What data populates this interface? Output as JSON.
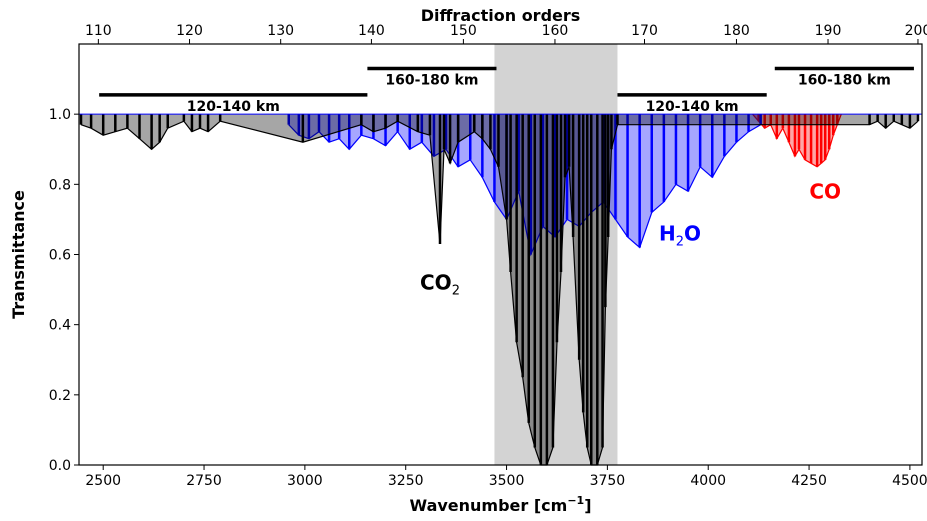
{
  "chart_data": {
    "type": "line",
    "xlabel": "Wavenumber [cm",
    "xlabel_sup": "−1",
    "xlabel_end": "]",
    "ylabel": "Transmittance",
    "top_axis_label": "Diffraction orders",
    "xlim": [
      2440,
      4530
    ],
    "ylim": [
      0.0,
      1.2
    ],
    "x_ticks": [
      2500,
      2750,
      3000,
      3250,
      3500,
      3750,
      4000,
      4250,
      4500
    ],
    "y_ticks": [
      0.0,
      0.2,
      0.4,
      0.6,
      0.8,
      1.0
    ],
    "top_ticks": [
      110,
      120,
      130,
      140,
      150,
      160,
      170,
      180,
      190,
      200
    ],
    "top_tick_positions_wavenumber": [
      2488,
      2714,
      2940,
      3165,
      3393,
      3620,
      3842,
      4070,
      4297,
      4520
    ],
    "shaded_region": [
      3470,
      3775
    ],
    "altitude_bars": [
      {
        "label": "120-140 km",
        "x_range": [
          2490,
          3155
        ],
        "y": 1.055
      },
      {
        "label": "160-180 km",
        "x_range": [
          3155,
          3475
        ],
        "y": 1.13
      },
      {
        "label": "120-140 km",
        "x_range": [
          3775,
          4145
        ],
        "y": 1.055
      },
      {
        "label": "160-180 km",
        "x_range": [
          4165,
          4510
        ],
        "y": 1.13
      }
    ],
    "series": [
      {
        "name": "CO",
        "color": "#ff0000",
        "label_position": [
          4290,
          0.76
        ],
        "points": [
          [
            4110,
            1.0
          ],
          [
            4125,
            0.98
          ],
          [
            4140,
            0.96
          ],
          [
            4155,
            0.97
          ],
          [
            4170,
            0.93
          ],
          [
            4185,
            0.96
          ],
          [
            4200,
            0.92
          ],
          [
            4215,
            0.88
          ],
          [
            4225,
            0.9
          ],
          [
            4240,
            0.87
          ],
          [
            4255,
            0.86
          ],
          [
            4270,
            0.85
          ],
          [
            4280,
            0.86
          ],
          [
            4290,
            0.87
          ],
          [
            4300,
            0.9
          ],
          [
            4310,
            0.94
          ],
          [
            4320,
            0.97
          ],
          [
            4330,
            1.0
          ]
        ]
      },
      {
        "name": "H",
        "name_sub": "2",
        "name_end": "O",
        "color": "#0000ff",
        "label_position": [
          3930,
          0.64
        ],
        "points": [
          [
            2960,
            0.97
          ],
          [
            2985,
            0.94
          ],
          [
            3010,
            0.93
          ],
          [
            3035,
            0.95
          ],
          [
            3060,
            0.92
          ],
          [
            3085,
            0.93
          ],
          [
            3110,
            0.9
          ],
          [
            3140,
            0.94
          ],
          [
            3170,
            0.93
          ],
          [
            3200,
            0.91
          ],
          [
            3230,
            0.95
          ],
          [
            3260,
            0.9
          ],
          [
            3290,
            0.92
          ],
          [
            3320,
            0.88
          ],
          [
            3350,
            0.9
          ],
          [
            3380,
            0.85
          ],
          [
            3410,
            0.87
          ],
          [
            3440,
            0.82
          ],
          [
            3470,
            0.75
          ],
          [
            3500,
            0.7
          ],
          [
            3530,
            0.78
          ],
          [
            3560,
            0.6
          ],
          [
            3590,
            0.68
          ],
          [
            3620,
            0.65
          ],
          [
            3650,
            0.7
          ],
          [
            3680,
            0.68
          ],
          [
            3710,
            0.72
          ],
          [
            3740,
            0.75
          ],
          [
            3770,
            0.7
          ],
          [
            3800,
            0.65
          ],
          [
            3830,
            0.62
          ],
          [
            3860,
            0.72
          ],
          [
            3890,
            0.75
          ],
          [
            3920,
            0.8
          ],
          [
            3950,
            0.78
          ],
          [
            3980,
            0.85
          ],
          [
            4010,
            0.82
          ],
          [
            4040,
            0.88
          ],
          [
            4070,
            0.92
          ],
          [
            4100,
            0.95
          ],
          [
            4130,
            0.97
          ]
        ]
      },
      {
        "name": "CO",
        "name_sub": "2",
        "color": "#000000",
        "label_position": [
          3335,
          0.5
        ],
        "points": [
          [
            2445,
            0.97
          ],
          [
            2470,
            0.96
          ],
          [
            2500,
            0.94
          ],
          [
            2530,
            0.95
          ],
          [
            2560,
            0.96
          ],
          [
            2590,
            0.93
          ],
          [
            2620,
            0.9
          ],
          [
            2640,
            0.92
          ],
          [
            2660,
            0.96
          ],
          [
            2700,
            0.98
          ],
          [
            2720,
            0.95
          ],
          [
            2740,
            0.96
          ],
          [
            2760,
            0.95
          ],
          [
            2790,
            0.98
          ],
          [
            2995,
            0.92
          ],
          [
            3140,
            0.97
          ],
          [
            3170,
            0.95
          ],
          [
            3200,
            0.96
          ],
          [
            3230,
            0.98
          ],
          [
            3280,
            0.95
          ],
          [
            3310,
            0.94
          ],
          [
            3335,
            0.63
          ],
          [
            3345,
            0.9
          ],
          [
            3360,
            0.86
          ],
          [
            3380,
            0.92
          ],
          [
            3420,
            0.95
          ],
          [
            3440,
            0.93
          ],
          [
            3460,
            0.9
          ],
          [
            3480,
            0.85
          ],
          [
            3500,
            0.7
          ],
          [
            3510,
            0.55
          ],
          [
            3525,
            0.35
          ],
          [
            3540,
            0.25
          ],
          [
            3555,
            0.12
          ],
          [
            3570,
            0.05
          ],
          [
            3585,
            0.0
          ],
          [
            3600,
            0.0
          ],
          [
            3615,
            0.05
          ],
          [
            3625,
            0.35
          ],
          [
            3635,
            0.55
          ],
          [
            3645,
            0.82
          ],
          [
            3655,
            0.85
          ],
          [
            3665,
            0.65
          ],
          [
            3680,
            0.3
          ],
          [
            3690,
            0.15
          ],
          [
            3700,
            0.05
          ],
          [
            3710,
            0.0
          ],
          [
            3725,
            0.0
          ],
          [
            3738,
            0.05
          ],
          [
            3745,
            0.45
          ],
          [
            3752,
            0.65
          ],
          [
            3760,
            0.9
          ],
          [
            3775,
            0.97
          ],
          [
            4400,
            0.97
          ],
          [
            4420,
            0.98
          ],
          [
            4440,
            0.96
          ],
          [
            4460,
            0.98
          ],
          [
            4480,
            0.97
          ],
          [
            4500,
            0.96
          ],
          [
            4520,
            0.98
          ]
        ]
      }
    ]
  }
}
